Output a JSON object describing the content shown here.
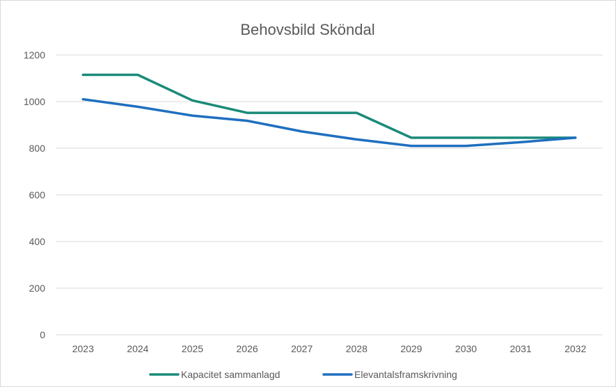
{
  "chart_data": {
    "type": "line",
    "title": "Behovsbild Sköndal",
    "categories": [
      "2023",
      "2024",
      "2025",
      "2026",
      "2027",
      "2028",
      "2029",
      "2030",
      "2031",
      "2032"
    ],
    "ylim": [
      0,
      1200
    ],
    "yticks": [
      0,
      200,
      400,
      600,
      800,
      1000,
      1200
    ],
    "grid": true,
    "legend_position": "bottom",
    "series": [
      {
        "name": "Kapacitet sammanlagd",
        "color": "#1a8a7a",
        "values": [
          1115,
          1115,
          1005,
          952,
          952,
          952,
          845,
          845,
          845,
          845
        ]
      },
      {
        "name": "Elevantalsframskrivning",
        "color": "#1f6fbf",
        "values": [
          1010,
          978,
          940,
          918,
          872,
          838,
          810,
          810,
          826,
          845
        ]
      }
    ]
  }
}
